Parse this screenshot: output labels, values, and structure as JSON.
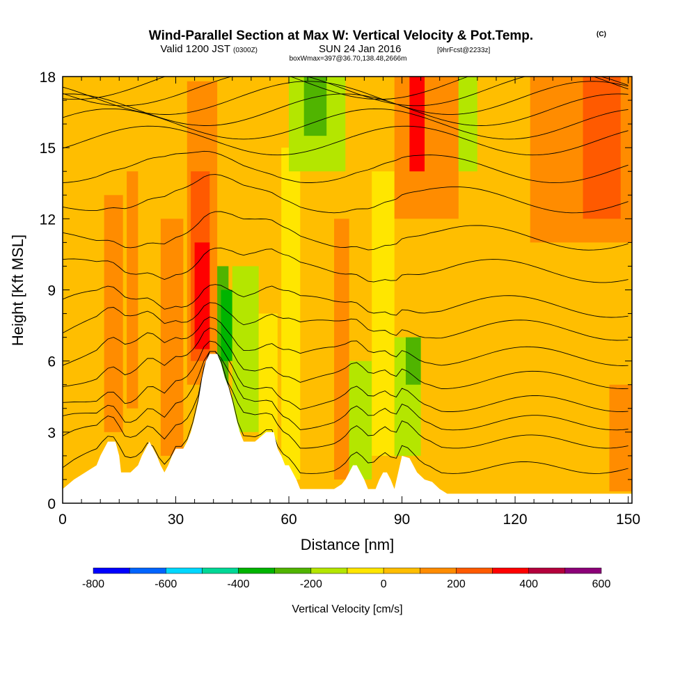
{
  "title": {
    "main": "Wind-Parallel Section at Max W: Vertical Velocity & Pot.Temp.",
    "copyright": "(C)",
    "subtitle_a": "Valid 1200 JST",
    "subtitle_b": "(0300Z)",
    "subtitle_c": "SUN 24 Jan 2016",
    "subtitle_d": "[9hrFcst@2233z]",
    "boxline": "boxWmax=397@36.70,138.48,2666m"
  },
  "chart_data": {
    "type": "heatmap",
    "xlabel": "Distance [nm]",
    "ylabel": "Height [Kft MSL]",
    "xlim": [
      0,
      151
    ],
    "ylim": [
      0,
      18
    ],
    "x_ticks": [
      0,
      30,
      60,
      90,
      120,
      150
    ],
    "y_ticks": [
      0,
      3,
      6,
      9,
      12,
      15,
      18
    ],
    "colorbar": {
      "label": "Vertical Velocity [cm/s]",
      "ticks": [
        -800,
        -600,
        -400,
        -200,
        0,
        200,
        400,
        600
      ],
      "bounds": [
        -800,
        -700,
        -600,
        -500,
        -400,
        -300,
        -200,
        -100,
        0,
        100,
        200,
        300,
        400,
        500,
        600
      ],
      "colors": [
        "#0000ff",
        "#0064ff",
        "#00d8ff",
        "#00d896",
        "#00b400",
        "#50b400",
        "#b4e600",
        "#ffe600",
        "#ffbe00",
        "#ff8c00",
        "#ff5a00",
        "#ff0000",
        "#b4003c",
        "#8c0078"
      ]
    },
    "terrain_profile": {
      "distance_nm": [
        0,
        3,
        6,
        9,
        10,
        11,
        12,
        13,
        14,
        15,
        15.5,
        17,
        18,
        20,
        21,
        22,
        23,
        24,
        25,
        26,
        27,
        28,
        29,
        30,
        31,
        32,
        33,
        34,
        35,
        36,
        37,
        38,
        39,
        40,
        41,
        42,
        43,
        44,
        45,
        46,
        47,
        48,
        49,
        50,
        51,
        54,
        56,
        57,
        58,
        59,
        60,
        61,
        62,
        63,
        64,
        66,
        68,
        70,
        72,
        74,
        75,
        76,
        77,
        78,
        79,
        80,
        81,
        82,
        83,
        84,
        85,
        86,
        87,
        88,
        89,
        90,
        92,
        94,
        96,
        98,
        100,
        102,
        110,
        120,
        130,
        140,
        151
      ],
      "height_kft": [
        0.6,
        1.0,
        1.3,
        1.6,
        2.0,
        2.3,
        2.6,
        2.6,
        2.6,
        2.0,
        1.3,
        1.3,
        1.3,
        1.6,
        2.0,
        2.3,
        2.6,
        2.3,
        2.0,
        1.6,
        1.3,
        1.6,
        2.0,
        2.3,
        2.3,
        2.3,
        2.6,
        3.0,
        3.6,
        4.3,
        5.3,
        6.0,
        6.3,
        6.3,
        6.3,
        5.9,
        5.3,
        4.9,
        4.3,
        3.6,
        3.0,
        2.6,
        2.6,
        2.6,
        2.6,
        3.0,
        3.0,
        2.3,
        2.0,
        1.6,
        1.6,
        1.3,
        1.0,
        0.6,
        0.6,
        0.6,
        0.6,
        0.6,
        0.6,
        0.8,
        1.0,
        1.3,
        1.6,
        1.6,
        1.3,
        1.0,
        0.6,
        0.6,
        0.6,
        1.0,
        1.3,
        1.3,
        1.0,
        0.6,
        1.3,
        2.0,
        1.9,
        1.3,
        1.0,
        0.9,
        0.6,
        0.4,
        0.4,
        0.4,
        0.4,
        0.4,
        0.4
      ]
    },
    "vertical_velocity_cells": [
      {
        "x0": 0,
        "x1": 151,
        "y0": 0,
        "y1": 18,
        "value": 50
      },
      {
        "x0": 11,
        "x1": 16,
        "y0": 3,
        "y1": 13,
        "value": 150
      },
      {
        "x0": 17,
        "x1": 20,
        "y0": 4,
        "y1": 14,
        "value": 150
      },
      {
        "x0": 26,
        "x1": 32,
        "y0": 2,
        "y1": 12,
        "value": 150
      },
      {
        "x0": 33,
        "x1": 41,
        "y0": 5,
        "y1": 17.8,
        "value": 150
      },
      {
        "x0": 34,
        "x1": 39,
        "y0": 6,
        "y1": 14,
        "value": 250
      },
      {
        "x0": 35,
        "x1": 39,
        "y0": 6.5,
        "y1": 11,
        "value": 350
      },
      {
        "x0": 41,
        "x1": 44,
        "y0": 5,
        "y1": 10,
        "value": -250
      },
      {
        "x0": 42,
        "x1": 45,
        "y0": 6,
        "y1": 9,
        "value": -350
      },
      {
        "x0": 45,
        "x1": 52,
        "y0": 3,
        "y1": 10,
        "value": -150
      },
      {
        "x0": 52,
        "x1": 57,
        "y0": 1,
        "y1": 8,
        "value": -50
      },
      {
        "x0": 58,
        "x1": 63,
        "y0": 1,
        "y1": 15,
        "value": -50
      },
      {
        "x0": 60,
        "x1": 75,
        "y0": 14,
        "y1": 18,
        "value": -150
      },
      {
        "x0": 64,
        "x1": 70,
        "y0": 15.5,
        "y1": 18,
        "value": -250
      },
      {
        "x0": 72,
        "x1": 76,
        "y0": 1,
        "y1": 12,
        "value": 150
      },
      {
        "x0": 76,
        "x1": 82,
        "y0": 1,
        "y1": 6,
        "value": -150
      },
      {
        "x0": 82,
        "x1": 88,
        "y0": 2,
        "y1": 14,
        "value": -50
      },
      {
        "x0": 88,
        "x1": 95,
        "y0": 2,
        "y1": 7,
        "value": -150
      },
      {
        "x0": 91,
        "x1": 95,
        "y0": 5,
        "y1": 7,
        "value": -250
      },
      {
        "x0": 88,
        "x1": 105,
        "y0": 12,
        "y1": 18,
        "value": 150
      },
      {
        "x0": 92,
        "x1": 96,
        "y0": 14,
        "y1": 18,
        "value": 350
      },
      {
        "x0": 105,
        "x1": 110,
        "y0": 14,
        "y1": 18,
        "value": -150
      },
      {
        "x0": 110,
        "x1": 124,
        "y0": 1,
        "y1": 18,
        "value": 50
      },
      {
        "x0": 124,
        "x1": 151,
        "y0": 11,
        "y1": 18,
        "value": 150
      },
      {
        "x0": 138,
        "x1": 148,
        "y0": 12,
        "y1": 18,
        "value": 250
      },
      {
        "x0": 145,
        "x1": 151,
        "y0": 0.5,
        "y1": 5,
        "value": 150
      }
    ],
    "theta_contours": {
      "annotation": "potential temperature isolines (K); lower levels nearly flat, packing tightly above 15 kft",
      "base_heights_kft": [
        1.5,
        2.6,
        3.4,
        4.2,
        5.2,
        6.2,
        7.3,
        8.3,
        9.8,
        11.2,
        12.8,
        14.1,
        15.3,
        16.0,
        16.6,
        17.1,
        17.5,
        17.8
      ]
    }
  }
}
